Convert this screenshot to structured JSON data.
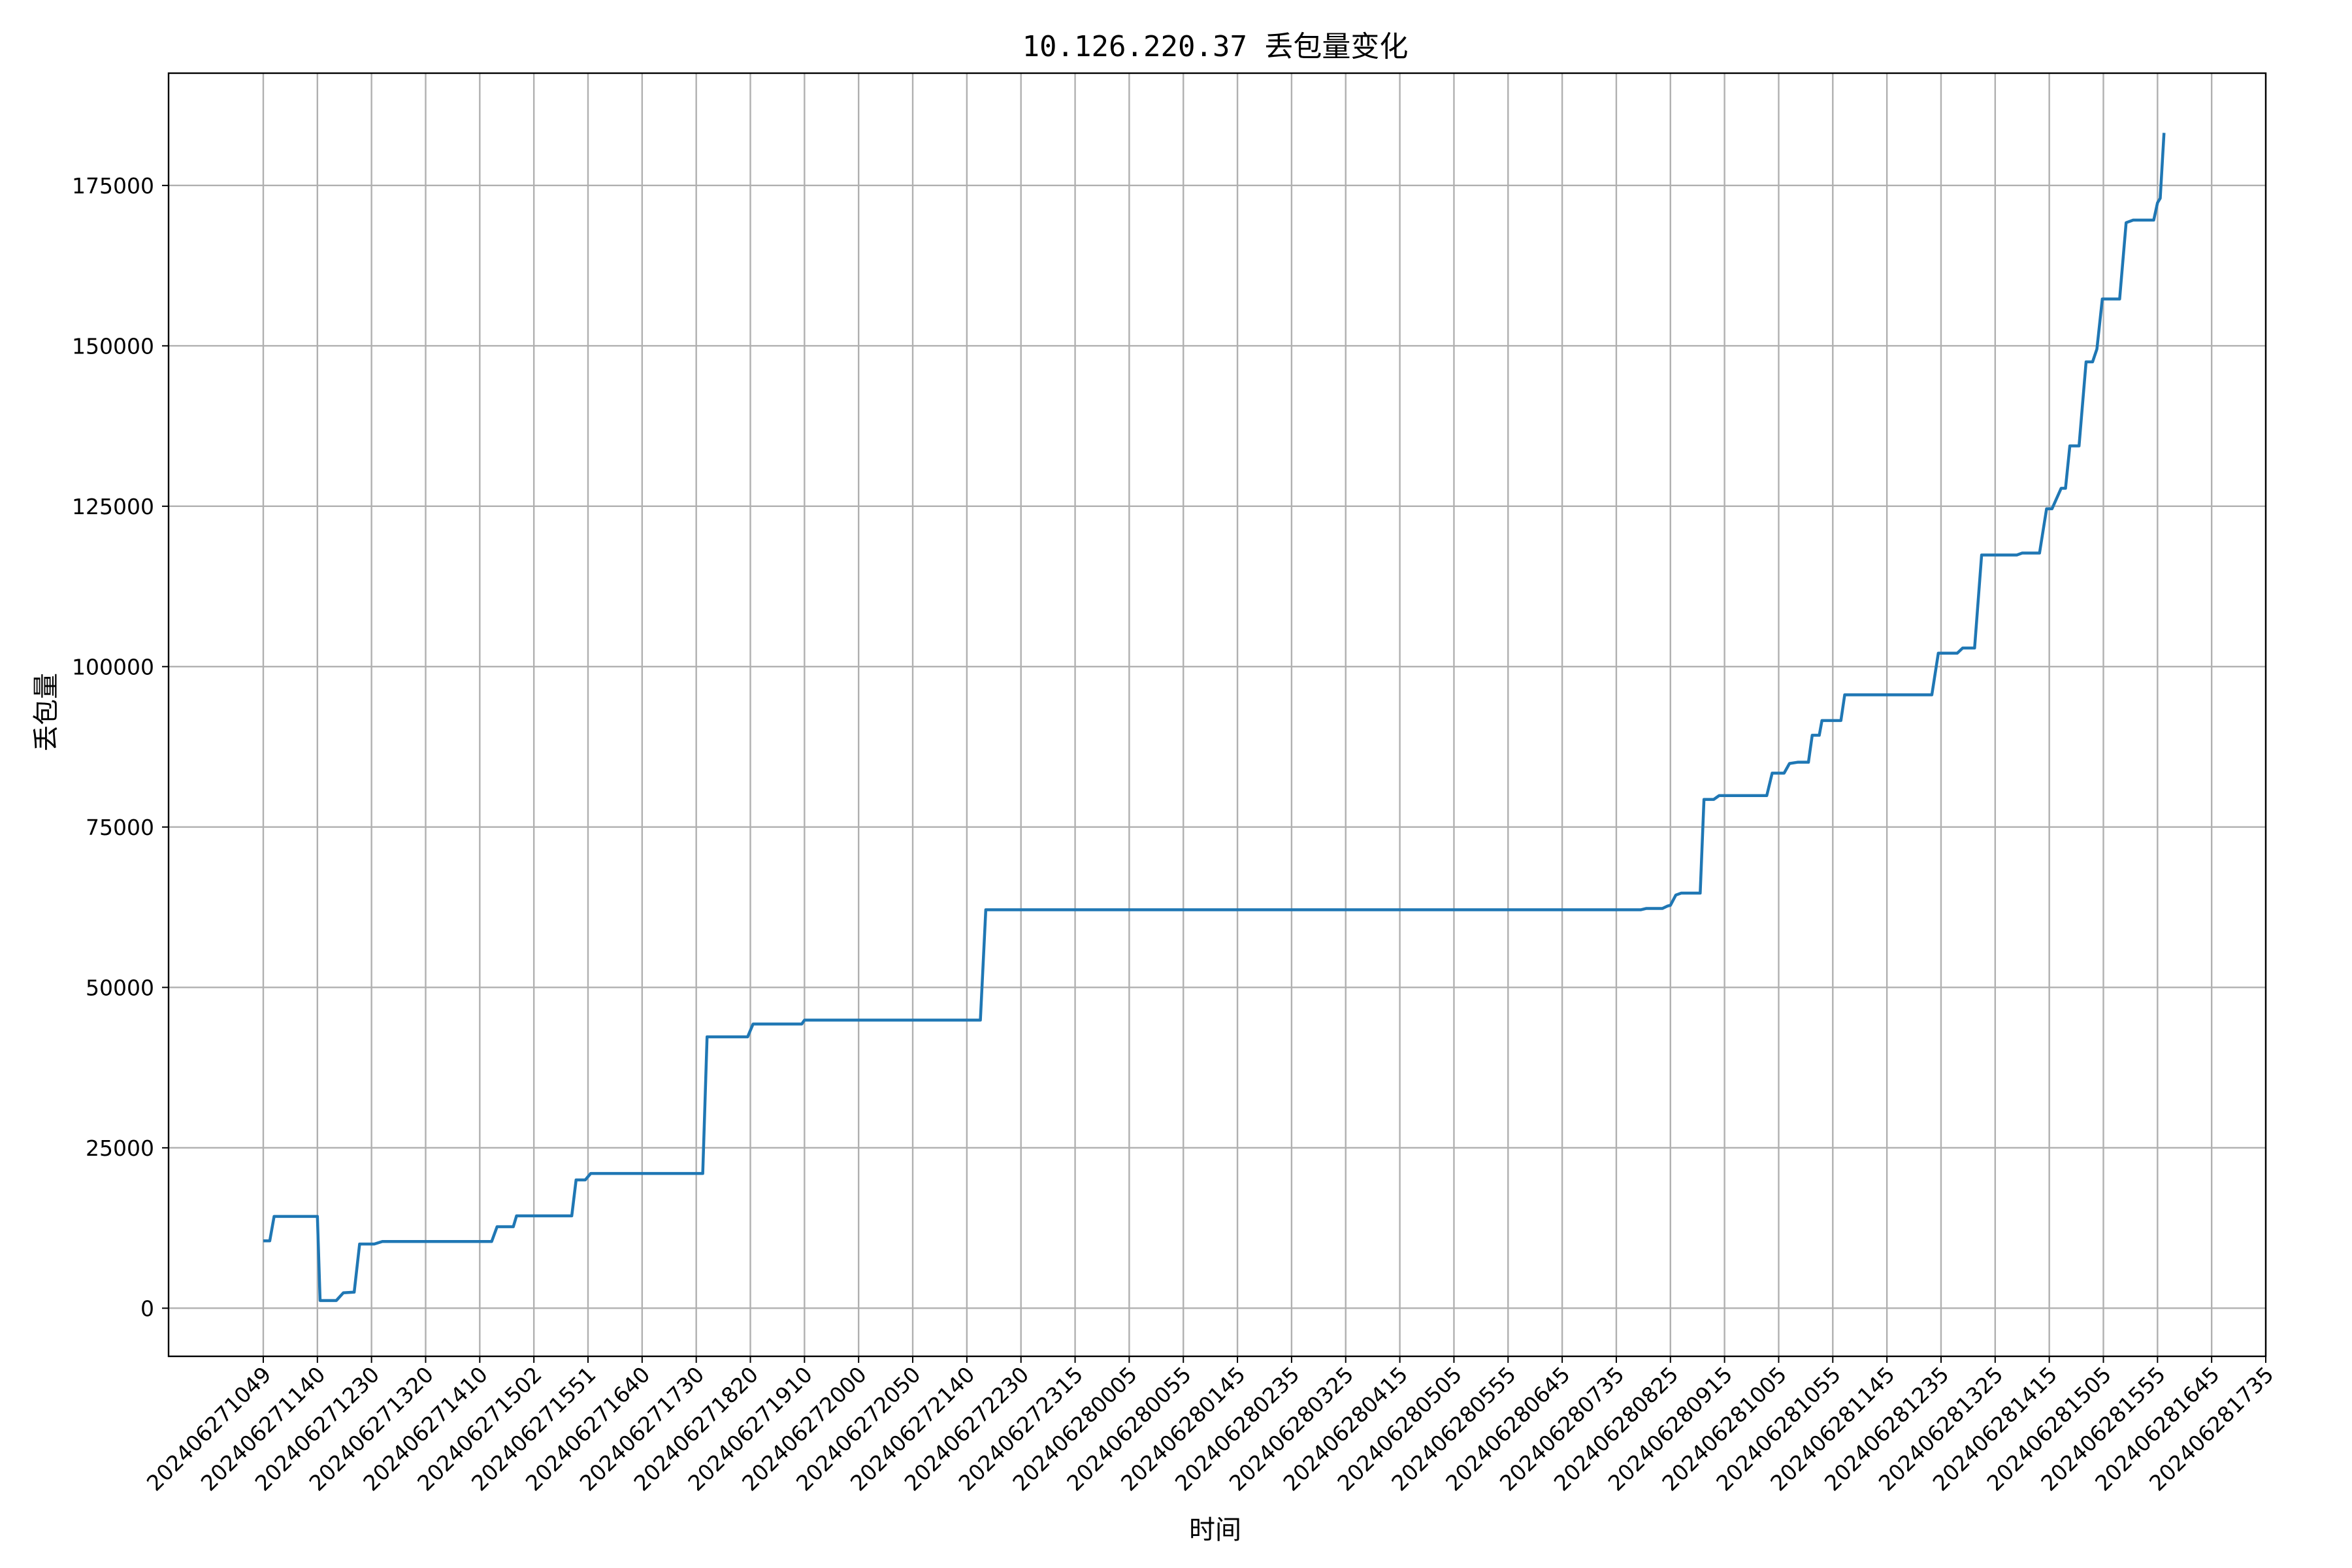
{
  "chart_data": {
    "type": "line",
    "title": "10.126.220.37 丢包量变化",
    "xlabel": "时间",
    "ylabel": "丢包量",
    "grid": true,
    "ylim": [
      -7500,
      192500
    ],
    "yticks": [
      0,
      25000,
      50000,
      75000,
      100000,
      125000,
      150000,
      175000
    ],
    "x_categories": [
      "202406271049",
      "202406271140",
      "202406271230",
      "202406271320",
      "202406271410",
      "202406271502",
      "202406271551",
      "202406271640",
      "202406271730",
      "202406271820",
      "202406271910",
      "202406272000",
      "202406272050",
      "202406272140",
      "202406272230",
      "202406272315",
      "202406280005",
      "202406280055",
      "202406280145",
      "202406280235",
      "202406280325",
      "202406280415",
      "202406280505",
      "202406280555",
      "202406280645",
      "202406280735",
      "202406280825",
      "202406280915",
      "202406281005",
      "202406281055",
      "202406281145",
      "202406281235",
      "202406281325",
      "202406281415",
      "202406281505",
      "202406281555",
      "202406281645",
      "202406281735"
    ],
    "xlim": [
      -1.75,
      37.0
    ],
    "series": [
      {
        "name": "",
        "color": "#1f77b4",
        "points": [
          [
            0.0,
            10500
          ],
          [
            0.12,
            10500
          ],
          [
            0.2,
            14300
          ],
          [
            0.97,
            14300
          ],
          [
            1.0,
            14300
          ],
          [
            1.05,
            1200
          ],
          [
            1.35,
            1200
          ],
          [
            1.48,
            2400
          ],
          [
            1.68,
            2500
          ],
          [
            1.78,
            10000
          ],
          [
            2.05,
            10000
          ],
          [
            2.2,
            10400
          ],
          [
            4.22,
            10400
          ],
          [
            4.32,
            12700
          ],
          [
            4.62,
            12700
          ],
          [
            4.68,
            14400
          ],
          [
            5.0,
            14400
          ],
          [
            5.7,
            14400
          ],
          [
            5.78,
            20000
          ],
          [
            5.95,
            20000
          ],
          [
            6.05,
            21000
          ],
          [
            8.0,
            21000
          ],
          [
            8.12,
            21000
          ],
          [
            8.2,
            42300
          ],
          [
            8.95,
            42300
          ],
          [
            9.05,
            44300
          ],
          [
            9.95,
            44300
          ],
          [
            10.0,
            44900
          ],
          [
            13.25,
            44900
          ],
          [
            13.35,
            62100
          ],
          [
            25.45,
            62100
          ],
          [
            25.55,
            62300
          ],
          [
            25.85,
            62300
          ],
          [
            25.95,
            62700
          ],
          [
            26.0,
            62800
          ],
          [
            26.1,
            64400
          ],
          [
            26.2,
            64700
          ],
          [
            26.55,
            64700
          ],
          [
            26.62,
            79300
          ],
          [
            26.8,
            79300
          ],
          [
            26.9,
            79900
          ],
          [
            27.78,
            79900
          ],
          [
            27.88,
            83400
          ],
          [
            28.1,
            83400
          ],
          [
            28.2,
            84900
          ],
          [
            28.35,
            85100
          ],
          [
            28.55,
            85100
          ],
          [
            28.62,
            89300
          ],
          [
            28.75,
            89300
          ],
          [
            28.8,
            91600
          ],
          [
            29.15,
            91600
          ],
          [
            29.22,
            95600
          ],
          [
            30.83,
            95600
          ],
          [
            30.95,
            102100
          ],
          [
            31.3,
            102100
          ],
          [
            31.4,
            102900
          ],
          [
            31.62,
            102900
          ],
          [
            31.75,
            117400
          ],
          [
            32.4,
            117400
          ],
          [
            32.5,
            117700
          ],
          [
            32.82,
            117700
          ],
          [
            32.95,
            124600
          ],
          [
            33.05,
            124600
          ],
          [
            33.22,
            127800
          ],
          [
            33.3,
            127800
          ],
          [
            33.38,
            134400
          ],
          [
            33.55,
            134400
          ],
          [
            33.68,
            147500
          ],
          [
            33.8,
            147500
          ],
          [
            33.88,
            149500
          ],
          [
            33.98,
            157300
          ],
          [
            34.3,
            157300
          ],
          [
            34.42,
            169200
          ],
          [
            34.55,
            169600
          ],
          [
            34.93,
            169600
          ],
          [
            35.0,
            172300
          ],
          [
            35.05,
            173000
          ],
          [
            35.12,
            183200
          ]
        ]
      }
    ]
  }
}
